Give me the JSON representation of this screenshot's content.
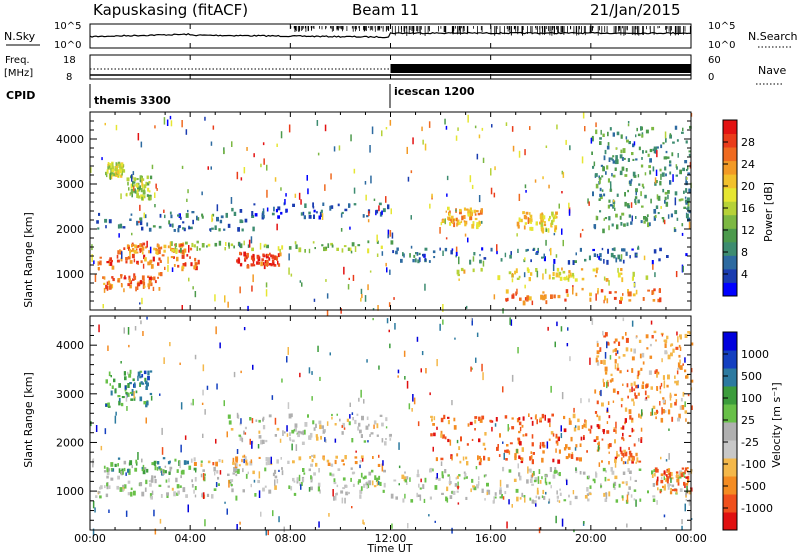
{
  "header": {
    "station": "Kapuskasing (fitACF)",
    "beam": "Beam 11",
    "date": "21/Jan/2015"
  },
  "top_panels": {
    "nsky_label": "N.Sky",
    "nsky_ticks": [
      "10^5",
      "10^0"
    ],
    "nsearch_label": "N.Search",
    "nsearch_ticks": [
      "10^5",
      "10^0"
    ],
    "freq_label": "Freq.",
    "freq_unit": "[MHz]",
    "freq_ticks": [
      "18",
      "8"
    ],
    "nave_label": "Nave",
    "nave_ticks": [
      "60",
      "0"
    ],
    "cpid_label": "CPID",
    "modes": [
      {
        "name": "themis 3300",
        "start_hour": 0
      },
      {
        "name": "icescan 1200",
        "start_hour": 12
      }
    ]
  },
  "chart_data": [
    {
      "type": "heatmap",
      "name": "power",
      "ylabel": "Slant Range [km]",
      "xlabel": "",
      "ylim": [
        200,
        4600
      ],
      "yticks": [
        "1000",
        "2000",
        "3000",
        "4000"
      ],
      "xlim": [
        0,
        24
      ],
      "colorbar": {
        "label": "Power [dB]",
        "ticks": [
          "28",
          "24",
          "20",
          "16",
          "12",
          "8",
          "4"
        ],
        "colors": [
          "#0000ff",
          "#1a3cb0",
          "#2d6aa0",
          "#3d8c70",
          "#4c9a4c",
          "#7cb842",
          "#b6d238",
          "#e6e632",
          "#f2c12c",
          "#f29a26",
          "#ef6a20",
          "#ea3c1a",
          "#e31212"
        ]
      },
      "regions": [
        {
          "t": [
            0.3,
            4.5
          ],
          "r": [
            1150,
            1450
          ],
          "level": 0.82
        },
        {
          "t": [
            5.8,
            7.6
          ],
          "r": [
            1200,
            1500
          ],
          "level": 0.9
        },
        {
          "t": [
            0.4,
            2.8
          ],
          "r": [
            700,
            1050
          ],
          "level": 0.8
        },
        {
          "t": [
            1.0,
            4.0
          ],
          "r": [
            1500,
            1700
          ],
          "level": 0.78
        },
        {
          "t": [
            3.0,
            12.0
          ],
          "r": [
            1550,
            1750
          ],
          "level": 0.45
        },
        {
          "t": [
            0.6,
            1.3
          ],
          "r": [
            3200,
            3500
          ],
          "level": 0.55
        },
        {
          "t": [
            1.4,
            2.4
          ],
          "r": [
            2700,
            3200
          ],
          "level": 0.45
        },
        {
          "t": [
            0.2,
            6.5
          ],
          "r": [
            2000,
            2400
          ],
          "level": 0.2
        },
        {
          "t": [
            5.0,
            12.0
          ],
          "r": [
            2300,
            2600
          ],
          "level": 0.15
        },
        {
          "t": [
            12.0,
            24.0
          ],
          "r": [
            1300,
            1600
          ],
          "level": 0.18
        },
        {
          "t": [
            14.5,
            22.5
          ],
          "r": [
            900,
            1150
          ],
          "level": 0.6
        },
        {
          "t": [
            16.5,
            23.0
          ],
          "r": [
            400,
            700
          ],
          "level": 0.78
        },
        {
          "t": [
            14.0,
            15.6
          ],
          "r": [
            2100,
            2500
          ],
          "level": 0.7
        },
        {
          "t": [
            17.0,
            18.6
          ],
          "r": [
            2000,
            2400
          ],
          "level": 0.62
        },
        {
          "t": [
            20.0,
            24.0
          ],
          "r": [
            2000,
            4300
          ],
          "level": 0.3
        }
      ]
    },
    {
      "type": "heatmap",
      "name": "velocity",
      "ylabel": "Slant Range [km]",
      "xlabel": "Time UT",
      "ylim": [
        200,
        4600
      ],
      "yticks": [
        "1000",
        "2000",
        "3000",
        "4000"
      ],
      "xlim": [
        0,
        24
      ],
      "xticks": [
        "00:00",
        "04:00",
        "08:00",
        "12:00",
        "16:00",
        "20:00",
        "00:00"
      ],
      "colorbar": {
        "label": "Velocity [m s⁻¹]",
        "ticks": [
          "1000",
          "500",
          "100",
          "25",
          "-25",
          "-100",
          "-500",
          "-1000"
        ],
        "colors": [
          "#e01010",
          "#f0501c",
          "#f48c22",
          "#f4b84a",
          "#c8c8c8",
          "#b0b0b0",
          "#68c048",
          "#3c9c3c",
          "#2c7aa0",
          "#1440c0",
          "#0000dd"
        ]
      },
      "regions": [
        {
          "t": [
            0.2,
            12.0
          ],
          "r": [
            900,
            1500
          ],
          "level": 0.48
        },
        {
          "t": [
            0.5,
            4.5
          ],
          "r": [
            1400,
            1700
          ],
          "level": 0.65
        },
        {
          "t": [
            4.0,
            11.5
          ],
          "r": [
            1550,
            1750
          ],
          "level": 0.3
        },
        {
          "t": [
            0.6,
            2.4
          ],
          "r": [
            2700,
            3500
          ],
          "level": 0.7
        },
        {
          "t": [
            5.5,
            12.0
          ],
          "r": [
            2000,
            2600
          ],
          "level": 0.45
        },
        {
          "t": [
            12.0,
            24.0
          ],
          "r": [
            800,
            1500
          ],
          "level": 0.47
        },
        {
          "t": [
            13.5,
            22.0
          ],
          "r": [
            1600,
            2600
          ],
          "level": 0.18
        },
        {
          "t": [
            22.5,
            24.0
          ],
          "r": [
            1000,
            1500
          ],
          "level": 0.2
        },
        {
          "t": [
            20.0,
            24.0
          ],
          "r": [
            2500,
            4300
          ],
          "level": 0.25
        }
      ]
    }
  ]
}
